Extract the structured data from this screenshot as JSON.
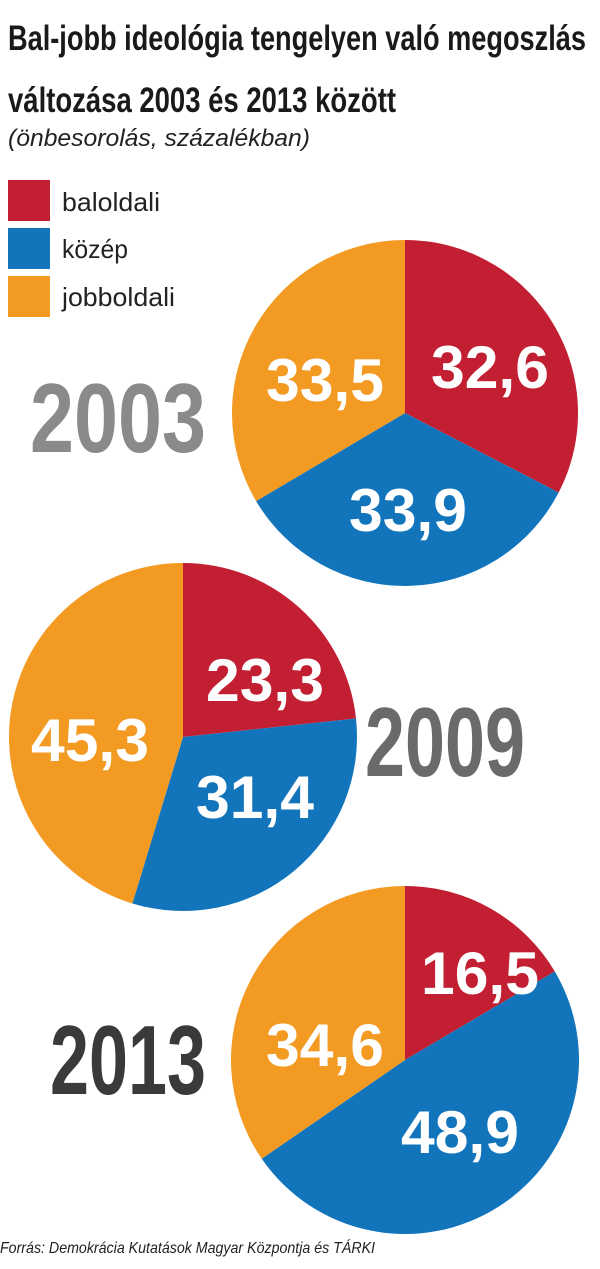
{
  "chart_data": {
    "type": "pie",
    "title": "Bal-jobb ideológia tengelyen való megoszlás változása 2003 és 2013 között",
    "title_lines": [
      "Bal-jobb ideológia tengelyen való megoszlás",
      "változása 2003 és 2013 között"
    ],
    "subtitle": "(önbesorolás, százalékban)",
    "legend": [
      {
        "label": "baloldali",
        "color": "#c21f32"
      },
      {
        "label": "közép",
        "color": "#1275bc"
      },
      {
        "label": "jobboldali",
        "color": "#f39a22"
      }
    ],
    "pies": [
      {
        "year": "2003",
        "year_color": "#8a8a8a",
        "values": [
          32.6,
          33.9,
          33.5
        ],
        "labels": [
          "32,6",
          "33,9",
          "33,5"
        ]
      },
      {
        "year": "2009",
        "year_color": "#6a6a6a",
        "values": [
          23.3,
          31.4,
          45.3
        ],
        "labels": [
          "23,3",
          "31,4",
          "45,3"
        ]
      },
      {
        "year": "2013",
        "year_color": "#3a3a3a",
        "values": [
          16.5,
          48.9,
          34.6
        ],
        "labels": [
          "16,5",
          "48,9",
          "34,6"
        ]
      }
    ],
    "source": "Forrás: Demokrácia Kutatások Magyar Központja és TÁRKI"
  }
}
